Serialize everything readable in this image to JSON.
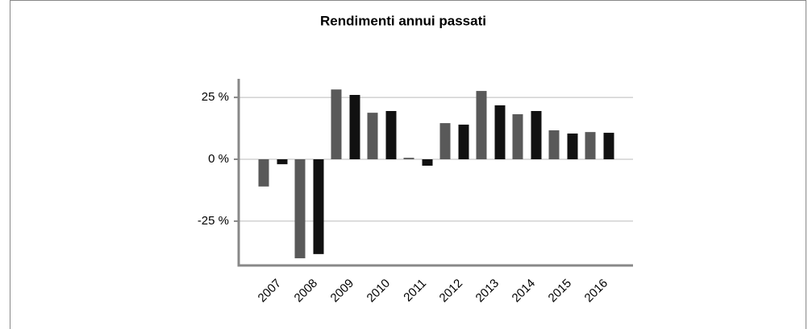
{
  "chart_data": {
    "type": "bar",
    "title": "Rendimenti annui passati",
    "categories": [
      "2007",
      "2008",
      "2009",
      "2010",
      "2011",
      "2012",
      "2013",
      "2014",
      "2015",
      "2016"
    ],
    "series": [
      {
        "color": "#595959",
        "values": [
          -11,
          -40,
          28.2,
          18.8,
          0.6,
          14.6,
          27.6,
          18.2,
          11.7,
          11
        ]
      },
      {
        "color": "#111111",
        "values": [
          -2,
          -38.3,
          26,
          19.5,
          -2.6,
          14,
          21.8,
          19.5,
          10.4,
          10.7
        ]
      }
    ],
    "ylim": [
      -42.9,
      32.5
    ],
    "yticks": [
      {
        "value": -25,
        "label": "-25 %"
      },
      {
        "value": 0,
        "label": "0 %"
      },
      {
        "value": 25,
        "label": "25 %"
      }
    ],
    "grid": true
  }
}
